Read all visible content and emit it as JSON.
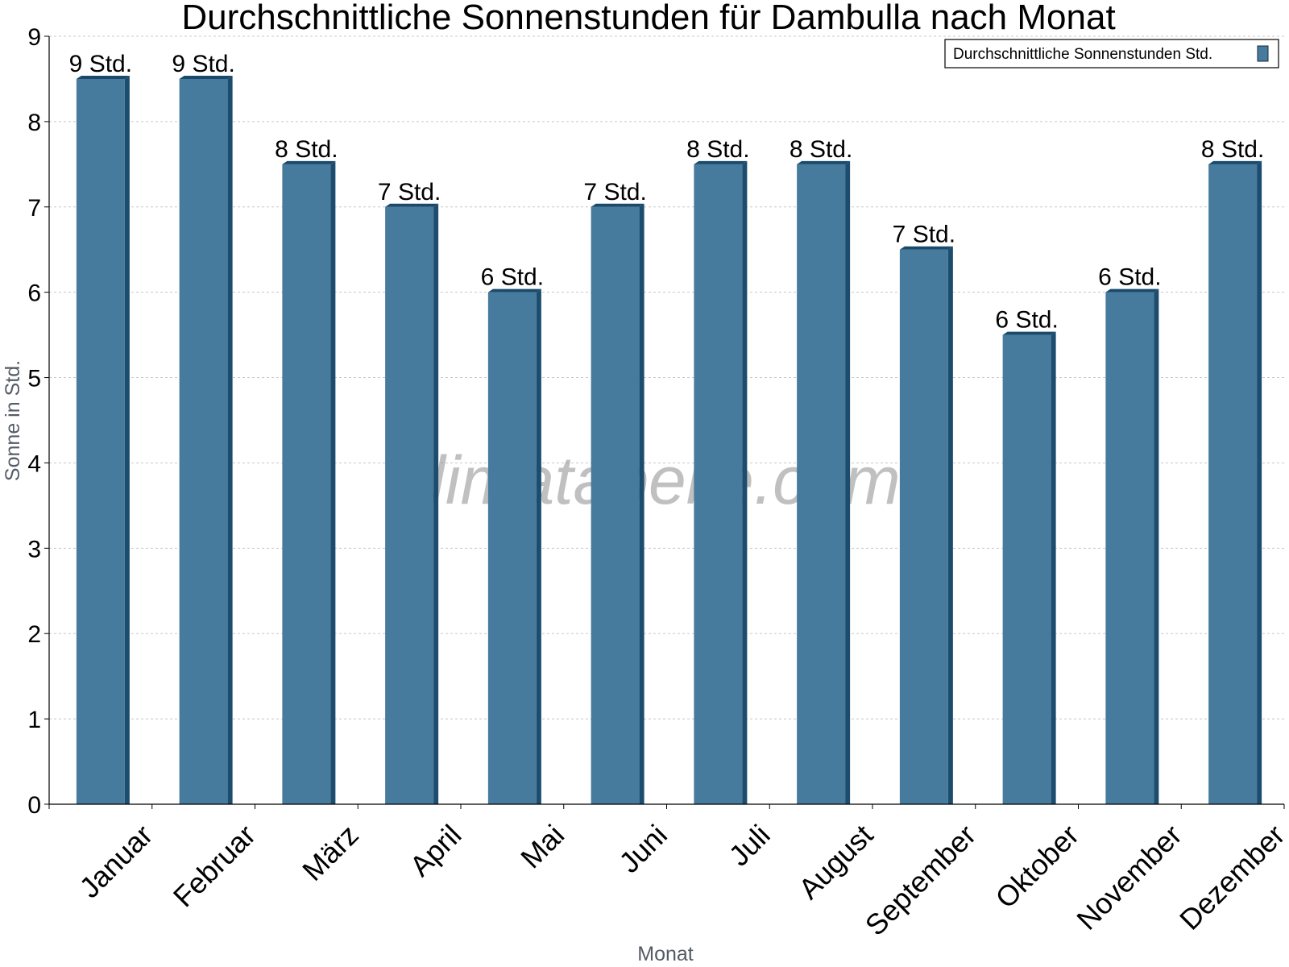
{
  "chart_data": {
    "type": "bar",
    "title": "Durchschnittliche Sonnenstunden für Dambulla nach Monat",
    "xlabel": "Monat",
    "ylabel": "Sonne in Std.",
    "categories": [
      "Januar",
      "Februar",
      "März",
      "April",
      "Mai",
      "Juni",
      "Juli",
      "August",
      "September",
      "Oktober",
      "November",
      "Dezember"
    ],
    "series": [
      {
        "name": "Durchschnittliche Sonnenstunden Std.",
        "values": [
          8.5,
          8.5,
          7.5,
          7.0,
          6.0,
          7.0,
          7.5,
          7.5,
          6.5,
          5.5,
          6.0,
          7.5
        ],
        "labels": [
          "9 Std.",
          "9 Std.",
          "8 Std.",
          "7 Std.",
          "6 Std.",
          "7 Std.",
          "8 Std.",
          "8 Std.",
          "7 Std.",
          "6 Std.",
          "6 Std.",
          "8 Std."
        ]
      }
    ],
    "ylim": [
      0,
      9
    ],
    "yticks": [
      0,
      1,
      2,
      3,
      4,
      5,
      6,
      7,
      8,
      9
    ],
    "grid": true,
    "legend_position": "top-right",
    "colors": {
      "bar": "#467b9d",
      "bar_side": "#1d4d6e",
      "bar_top": "#1a4a6b"
    },
    "watermark": "klimatabelle.com"
  }
}
